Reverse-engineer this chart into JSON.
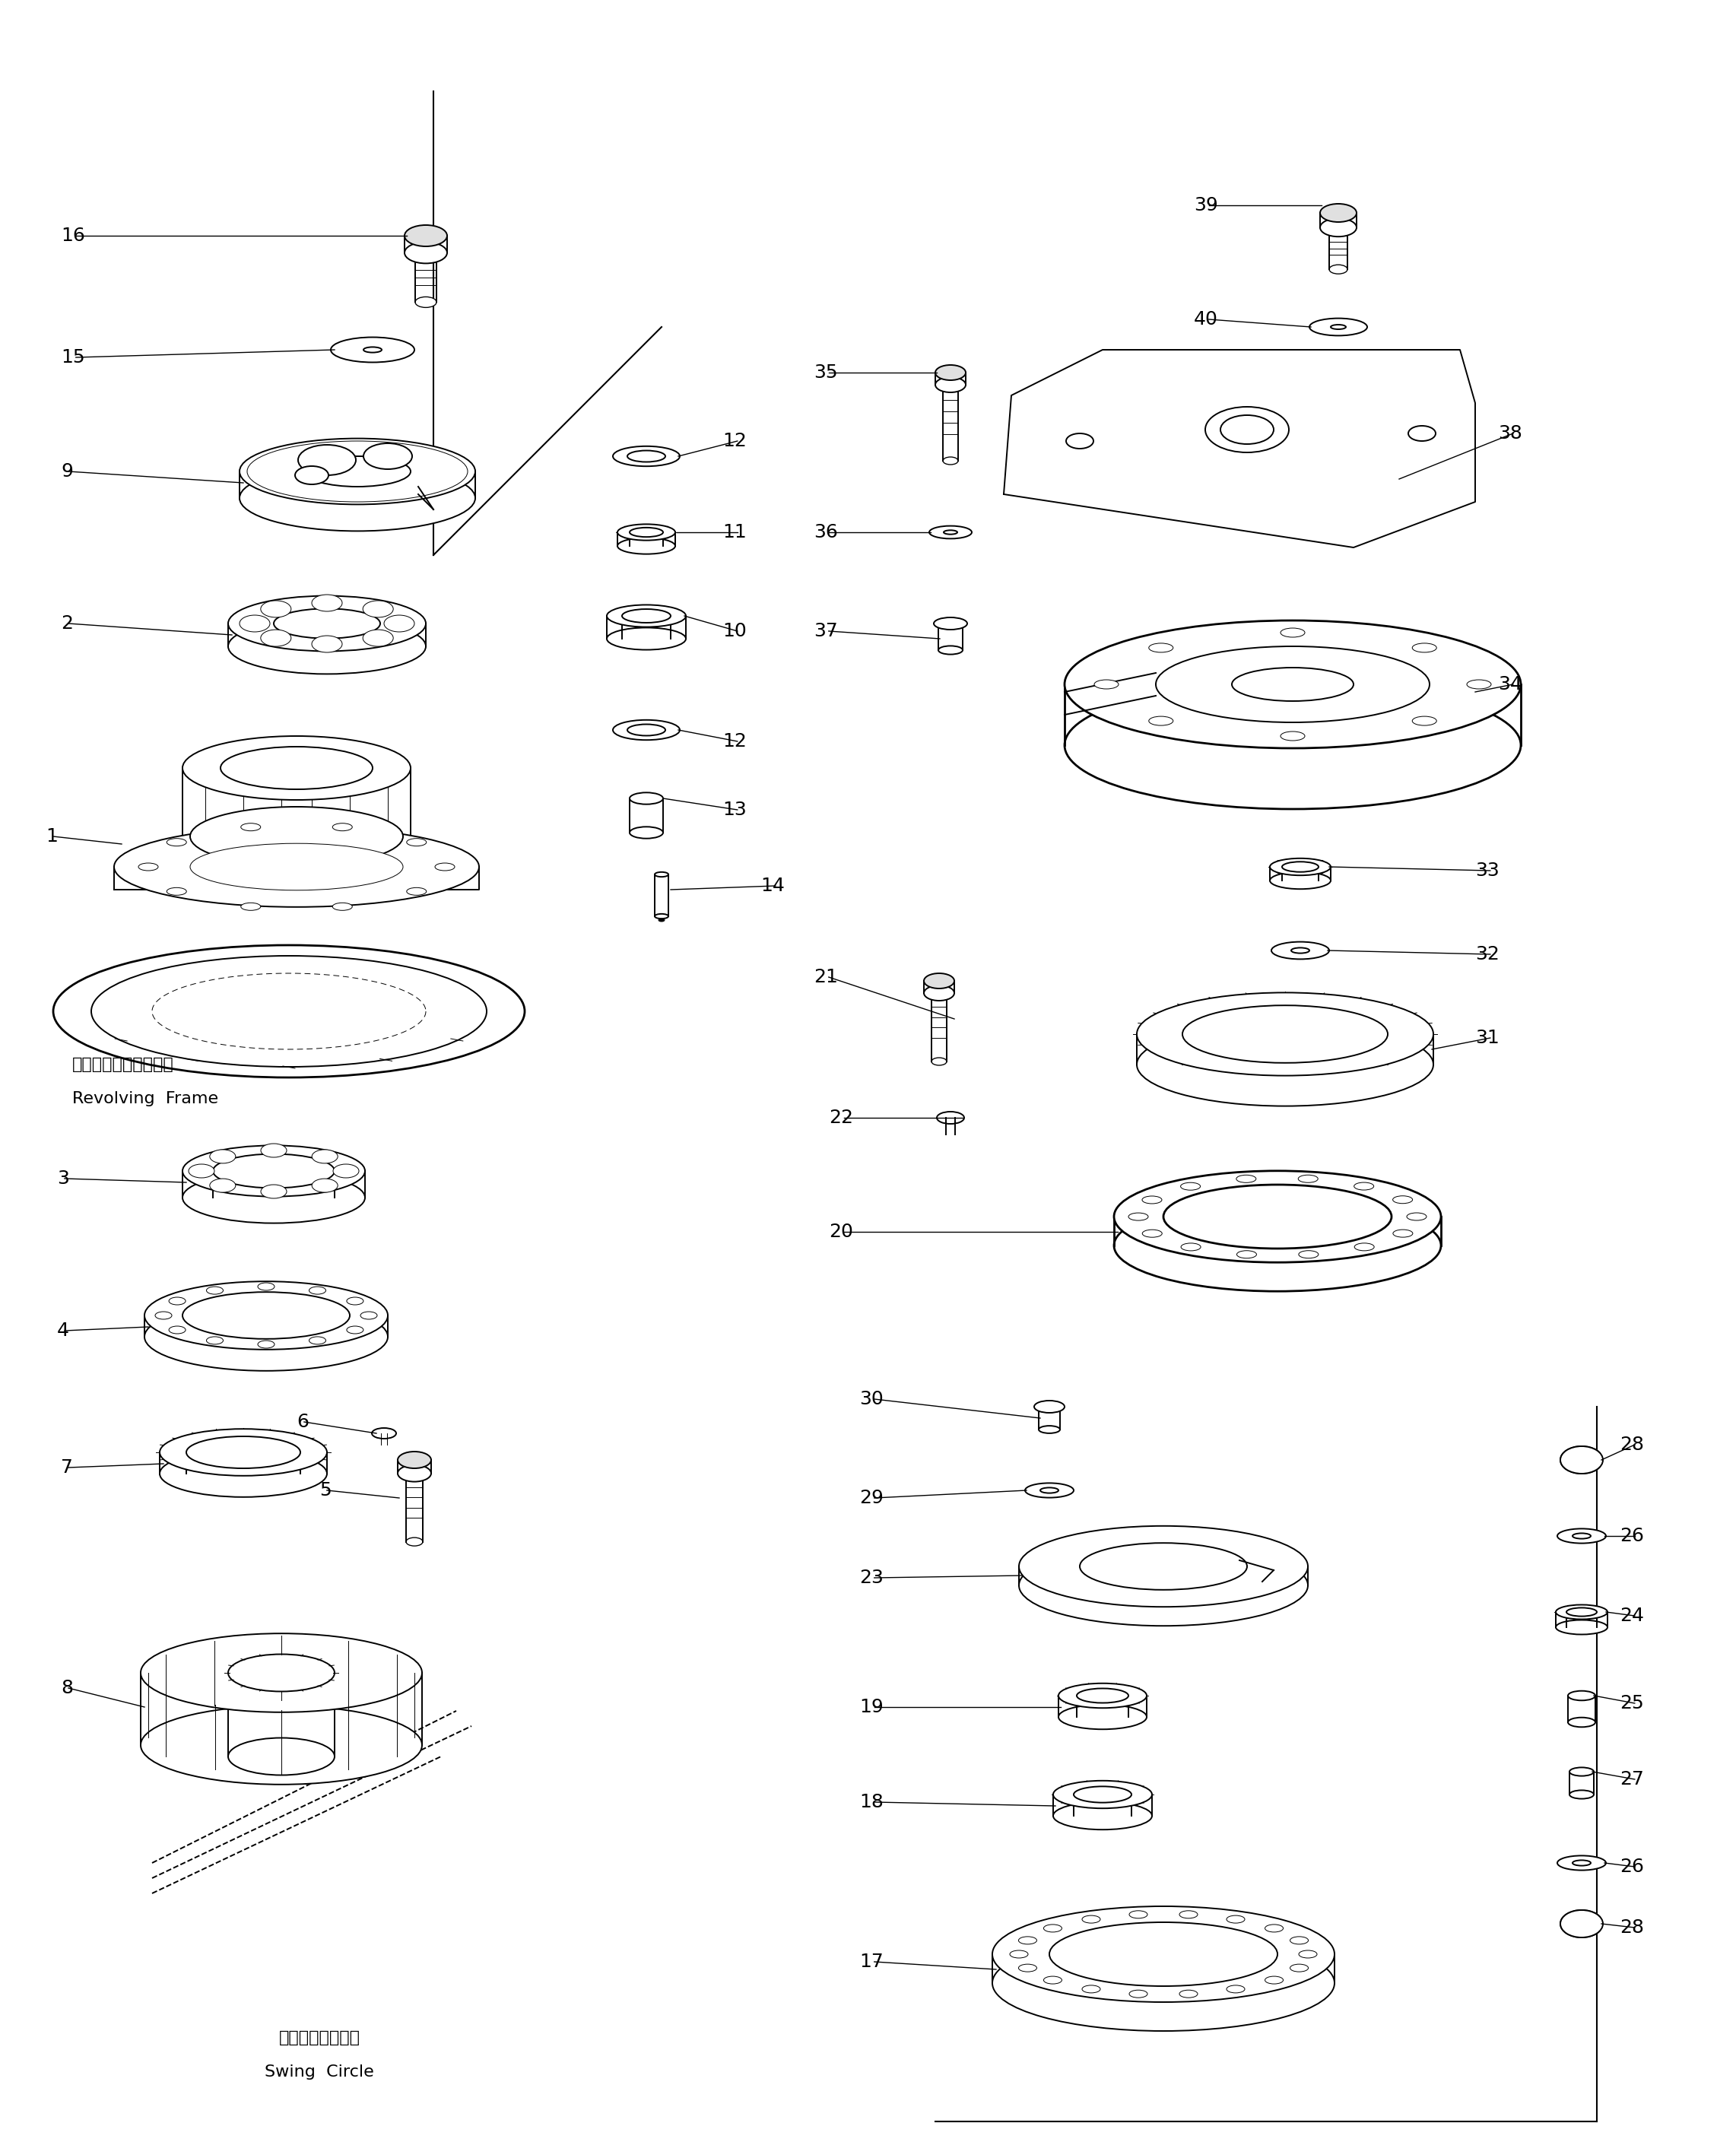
{
  "bg_color": "#ffffff",
  "line_color": "#000000",
  "fig_width": 22.83,
  "fig_height": 28.17,
  "lw": 1.4,
  "lw_thin": 0.7,
  "lw_thick": 2.0,
  "font_size_label": 18,
  "font_size_text": 13,
  "revolving_frame_jp": "レボルビングフレーム",
  "revolving_frame_en": "Revolving  Frame",
  "swing_circle_jp": "スイングサークル",
  "swing_circle_en": "Swing  Circle"
}
